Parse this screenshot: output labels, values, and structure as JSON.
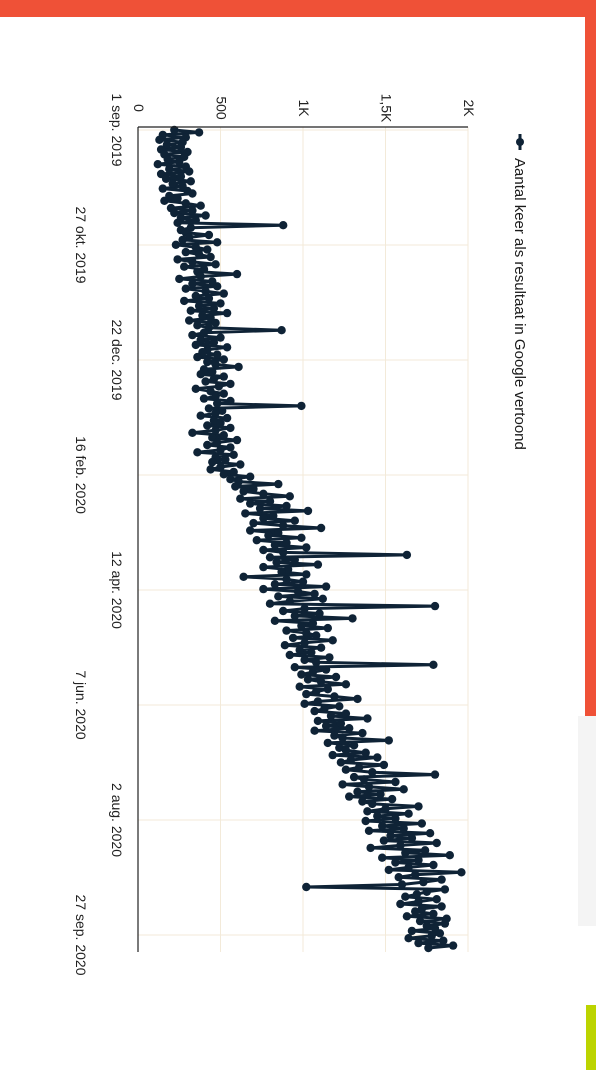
{
  "colors": {
    "frame": "#ef5137",
    "accent": "#bcd400",
    "series": "#0f2336",
    "grid": "#f3ead9",
    "axis": "#222222"
  },
  "chart_data": {
    "type": "line",
    "orientation": "rotated-90-clockwise",
    "title": "",
    "legend": [
      "Aantal keer als resultaat in Google vertoond"
    ],
    "legend_position": "top",
    "grid": true,
    "x_ticks": [
      "1 sep. 2019",
      "27 okt. 2019",
      "22 dec. 2019",
      "16 feb. 2020",
      "12 apr. 2020",
      "7 jun. 2020",
      "2 aug. 2020",
      "27 sep. 2020"
    ],
    "y_ticks": [
      "0",
      "500",
      "1K",
      "1,5K",
      "2K"
    ],
    "ylim": [
      0,
      2000
    ],
    "xlim": [
      "2019-09-01",
      "2020-10-02"
    ],
    "series": [
      {
        "name": "Aantal keer als resultaat in Google vertoond",
        "granularity": "daily",
        "start": "2019-09-01",
        "values": [
          220,
          370,
          150,
          290,
          130,
          270,
          175,
          260,
          140,
          300,
          160,
          280,
          180,
          250,
          120,
          290,
          190,
          310,
          140,
          260,
          170,
          320,
          210,
          270,
          150,
          300,
          330,
          190,
          240,
          160,
          290,
          380,
          200,
          330,
          220,
          410,
          260,
          350,
          240,
          880,
          320,
          260,
          290,
          430,
          310,
          270,
          480,
          230,
          350,
          420,
          290,
          370,
          440,
          240,
          330,
          470,
          280,
          400,
          360,
          600,
          380,
          250,
          450,
          330,
          480,
          290,
          410,
          520,
          350,
          430,
          280,
          500,
          370,
          460,
          320,
          540,
          390,
          440,
          310,
          470,
          360,
          430,
          870,
          400,
          330,
          500,
          380,
          460,
          350,
          540,
          420,
          390,
          480,
          360,
          520,
          420,
          470,
          610,
          400,
          450,
          380,
          520,
          460,
          410,
          560,
          490,
          350,
          440,
          520,
          470,
          400,
          560,
          480,
          990,
          430,
          510,
          470,
          380,
          540,
          460,
          500,
          420,
          560,
          470,
          330,
          520,
          450,
          600,
          480,
          420,
          560,
          500,
          360,
          580,
          470,
          530,
          450,
          620,
          500,
          440,
          580,
          520,
          680,
          560,
          610,
          850,
          590,
          700,
          640,
          760,
          920,
          620,
          800,
          680,
          900,
          740,
          1030,
          650,
          820,
          760,
          950,
          700,
          880,
          1110,
          680,
          850,
          790,
          990,
          720,
          900,
          830,
          1020,
          760,
          880,
          1630,
          800,
          950,
          840,
          1090,
          760,
          910,
          870,
          1020,
          640,
          900,
          1000,
          830,
          1140,
          760,
          970,
          1070,
          850,
          1120,
          920,
          800,
          1800,
          1010,
          880,
          1100,
          950,
          1300,
          830,
          1060,
          990,
          1150,
          900,
          1020,
          1080,
          940,
          1180,
          1010,
          890,
          1110,
          980,
          1050,
          920,
          1160,
          1010,
          1080,
          1790,
          950,
          1140,
          1060,
          990,
          1200,
          1030,
          1110,
          1260,
          980,
          1150,
          1080,
          1020,
          1190,
          1330,
          1090,
          1010,
          1220,
          1130,
          1070,
          1260,
          1170,
          1390,
          1090,
          1230,
          1140,
          1280,
          1070,
          1360,
          1190,
          1240,
          1520,
          1150,
          1310,
          1220,
          1260,
          1380,
          1180,
          1450,
          1290,
          1230,
          1490,
          1340,
          1260,
          1420,
          1800,
          1310,
          1370,
          1560,
          1240,
          1400,
          1610,
          1330,
          1470,
          1280,
          1540,
          1360,
          1420,
          1700,
          1500,
          1390,
          1640,
          1450,
          1560,
          1380,
          1720,
          1480,
          1610,
          1400,
          1770,
          1530,
          1660,
          1490,
          1810,
          1590,
          1410,
          1740,
          1620,
          1890,
          1480,
          1700,
          1560,
          1790,
          1640,
          1520,
          1960,
          1680,
          1580,
          1840,
          1730,
          1600,
          1020,
          1860,
          1750,
          1690,
          1620,
          1810,
          1700,
          1590,
          1840,
          1720,
          1680,
          1790,
          1630,
          1870,
          1710,
          1860,
          1750,
          1800,
          1660,
          1830,
          1780,
          1640,
          1850,
          1700,
          1910,
          1760
        ]
      }
    ]
  }
}
